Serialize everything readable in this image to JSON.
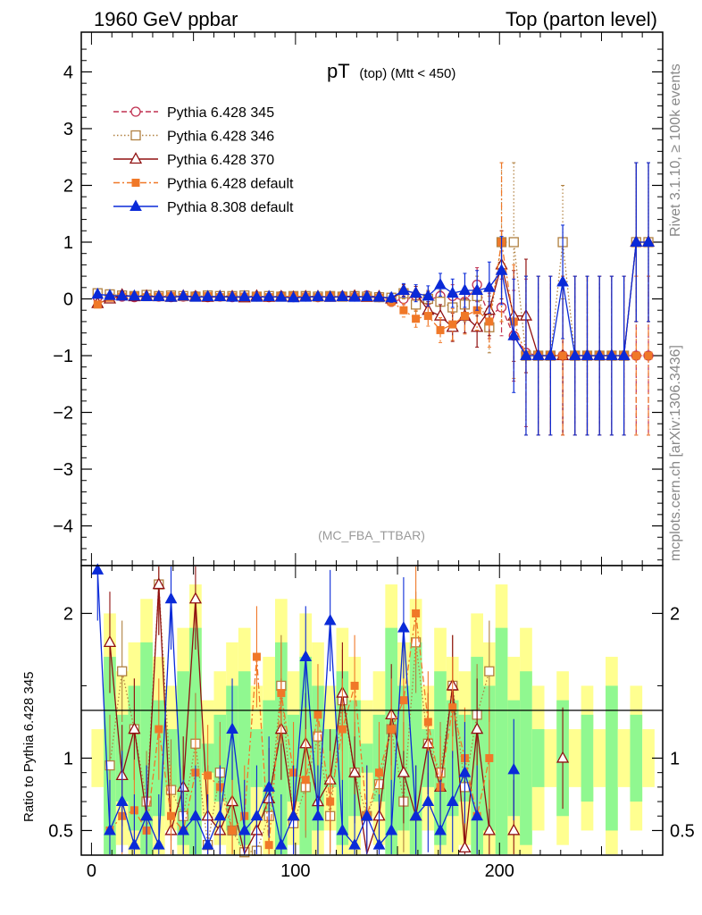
{
  "header": {
    "left": "1960 GeV ppbar",
    "right": "Top (parton level)"
  },
  "side": {
    "top": "Rivet 3.1.10, ≥ 100k events",
    "bottom": "mcplots.cern.ch [arXiv:1306.3436]"
  },
  "plot_title": {
    "main": "pT",
    "sub": "(top) (Mtt < 450)"
  },
  "watermark": "(MC_FBA_TTBAR)",
  "ratio_ylabel": "Ratio to Pythia 6.428 345",
  "chart_data": [
    {
      "type": "line",
      "title": "pT (top) (Mtt < 450)",
      "xlim": [
        -5,
        280
      ],
      "ylim": [
        -4.7,
        4.7
      ],
      "xticks": [
        0,
        100,
        200
      ],
      "yticks": [
        -4,
        -3,
        -2,
        -1,
        0,
        1,
        2,
        3,
        4
      ],
      "legend_position": "top-left",
      "series": [
        {
          "name": "Pythia 6.428 345",
          "color": "#c03050",
          "marker": "open-circle",
          "dash": "dashed",
          "x": [
            3,
            9,
            15,
            21,
            27,
            33,
            39,
            45,
            51,
            57,
            63,
            69,
            75,
            81,
            87,
            93,
            99,
            105,
            111,
            117,
            123,
            129,
            135,
            141,
            147,
            153,
            159,
            165,
            171,
            177,
            183,
            189,
            195,
            201,
            207,
            213,
            219,
            225,
            231,
            237,
            243,
            249,
            255,
            261,
            267,
            273
          ],
          "y": [
            0.03,
            0.02,
            0.04,
            0.03,
            0.05,
            0.04,
            0.03,
            0.04,
            0.05,
            0.03,
            0.04,
            0.03,
            0.04,
            0.04,
            0.03,
            0.05,
            0.03,
            0.04,
            0.03,
            0.04,
            0.05,
            0.04,
            0.06,
            0.03,
            -0.05,
            0.0,
            0.05,
            -0.02,
            0.05,
            0.05,
            -0.05,
            0.25,
            -0.3,
            -0.15,
            -0.65,
            -0.95,
            -1.0,
            -1.0,
            -1.0,
            -1.0,
            -1.0,
            -1.0,
            -1.0,
            -1.0,
            -1.0,
            -1.0
          ],
          "err": [
            0.05,
            0.05,
            0.05,
            0.05,
            0.05,
            0.05,
            0.05,
            0.05,
            0.05,
            0.05,
            0.05,
            0.05,
            0.05,
            0.05,
            0.05,
            0.05,
            0.05,
            0.05,
            0.05,
            0.05,
            0.05,
            0.05,
            0.06,
            0.06,
            0.08,
            0.1,
            0.1,
            0.15,
            0.15,
            0.2,
            0.25,
            0.3,
            0.4,
            0.5,
            0.8,
            1.3,
            1.4,
            1.4,
            1.4,
            1.4,
            1.4,
            1.4,
            1.4,
            1.4,
            1.4,
            1.4
          ]
        },
        {
          "name": "Pythia 6.428 346",
          "color": "#b08040",
          "marker": "open-square",
          "dash": "dotted",
          "x": [
            3,
            9,
            15,
            21,
            27,
            33,
            39,
            45,
            51,
            57,
            63,
            69,
            75,
            81,
            87,
            93,
            99,
            105,
            111,
            117,
            123,
            129,
            135,
            141,
            147,
            153,
            159,
            165,
            171,
            177,
            183,
            189,
            195,
            201,
            207,
            213,
            219,
            225,
            231,
            237,
            243,
            249,
            255,
            261,
            267,
            273
          ],
          "y": [
            0.1,
            0.08,
            0.06,
            0.05,
            0.07,
            0.05,
            0.06,
            0.05,
            0.04,
            0.06,
            0.05,
            0.05,
            0.06,
            0.04,
            0.05,
            0.04,
            0.05,
            0.05,
            0.04,
            0.05,
            0.04,
            0.05,
            0.04,
            0.03,
            0.02,
            0.1,
            -0.1,
            0.0,
            -0.05,
            -0.15,
            -0.1,
            0.05,
            -0.5,
            1.0,
            1.0,
            -1.0,
            -1.0,
            -1.0,
            1.0,
            -1.0,
            -1.0,
            -1.0,
            -1.0,
            -1.0,
            1.0,
            1.0
          ],
          "err": [
            0.05,
            0.05,
            0.05,
            0.05,
            0.05,
            0.05,
            0.05,
            0.05,
            0.05,
            0.05,
            0.05,
            0.05,
            0.05,
            0.05,
            0.05,
            0.05,
            0.05,
            0.05,
            0.05,
            0.05,
            0.05,
            0.05,
            0.06,
            0.06,
            0.08,
            0.1,
            0.12,
            0.15,
            0.2,
            0.25,
            0.3,
            0.35,
            0.45,
            1.4,
            1.4,
            1.4,
            1.4,
            1.4,
            1.0,
            1.4,
            1.4,
            1.4,
            1.4,
            1.4,
            1.4,
            1.4
          ]
        },
        {
          "name": "Pythia 6.428 370",
          "color": "#901010",
          "marker": "open-triangle",
          "dash": "solid",
          "x": [
            3,
            9,
            15,
            21,
            27,
            33,
            39,
            45,
            51,
            57,
            63,
            69,
            75,
            81,
            87,
            93,
            99,
            105,
            111,
            117,
            123,
            129,
            135,
            141,
            147,
            153,
            159,
            165,
            171,
            177,
            183,
            189,
            195,
            201,
            207,
            213,
            219,
            225,
            231,
            237,
            243,
            249,
            255,
            261,
            267,
            273
          ],
          "y": [
            -0.08,
            0.0,
            0.07,
            0.04,
            0.05,
            0.04,
            0.03,
            0.05,
            0.04,
            0.03,
            0.04,
            0.04,
            0.02,
            0.05,
            0.03,
            0.04,
            0.03,
            0.04,
            0.04,
            0.03,
            0.04,
            0.05,
            0.03,
            0.04,
            0.0,
            0.15,
            0.1,
            -0.2,
            -0.3,
            -0.5,
            -0.3,
            -0.5,
            -0.2,
            0.6,
            -0.3,
            -0.3,
            -1.0,
            -1.0,
            -1.0,
            -1.0,
            -1.0,
            -1.0,
            -1.0,
            -1.0,
            1.0,
            1.0
          ],
          "err": [
            0.05,
            0.05,
            0.05,
            0.05,
            0.05,
            0.05,
            0.05,
            0.05,
            0.05,
            0.05,
            0.05,
            0.05,
            0.05,
            0.05,
            0.05,
            0.05,
            0.05,
            0.05,
            0.05,
            0.05,
            0.05,
            0.05,
            0.06,
            0.06,
            0.08,
            0.1,
            0.12,
            0.15,
            0.2,
            0.25,
            0.3,
            0.35,
            0.45,
            0.6,
            0.8,
            1.0,
            1.4,
            1.4,
            1.4,
            1.4,
            1.4,
            1.4,
            1.4,
            1.4,
            1.4,
            1.4
          ]
        },
        {
          "name": "Pythia 6.428 default",
          "color": "#f07828",
          "marker": "filled-square",
          "dash": "dashdot",
          "x": [
            3,
            9,
            15,
            21,
            27,
            33,
            39,
            45,
            51,
            57,
            63,
            69,
            75,
            81,
            87,
            93,
            99,
            105,
            111,
            117,
            123,
            129,
            135,
            141,
            147,
            153,
            159,
            165,
            171,
            177,
            183,
            189,
            195,
            201,
            207,
            213,
            219,
            225,
            231,
            237,
            243,
            249,
            255,
            261,
            267,
            273
          ],
          "y": [
            -0.1,
            0.02,
            0.04,
            0.05,
            0.03,
            0.04,
            0.05,
            0.03,
            0.04,
            0.05,
            0.03,
            0.04,
            0.04,
            0.05,
            0.03,
            0.04,
            0.05,
            0.04,
            0.03,
            0.05,
            0.04,
            0.04,
            0.03,
            0.02,
            -0.05,
            -0.2,
            -0.35,
            -0.3,
            -0.55,
            -0.45,
            -0.3,
            -0.2,
            -0.4,
            1.0,
            -0.4,
            -1.0,
            -1.0,
            -1.0,
            -1.0,
            -1.0,
            -1.0,
            -1.0,
            -1.0,
            -1.0,
            -1.0,
            -1.0
          ],
          "err": [
            0.05,
            0.05,
            0.05,
            0.05,
            0.05,
            0.05,
            0.05,
            0.05,
            0.05,
            0.05,
            0.05,
            0.05,
            0.05,
            0.05,
            0.05,
            0.05,
            0.05,
            0.05,
            0.05,
            0.05,
            0.05,
            0.05,
            0.06,
            0.06,
            0.08,
            0.12,
            0.15,
            0.18,
            0.22,
            0.28,
            0.32,
            0.35,
            0.45,
            1.4,
            1.0,
            1.4,
            1.4,
            1.4,
            1.4,
            1.4,
            1.4,
            1.4,
            1.4,
            1.4,
            1.4,
            1.4
          ]
        },
        {
          "name": "Pythia 8.308 default",
          "color": "#0a2ad8",
          "marker": "filled-triangle",
          "dash": "solid",
          "x": [
            3,
            9,
            15,
            21,
            27,
            33,
            39,
            45,
            51,
            57,
            63,
            69,
            75,
            81,
            87,
            93,
            99,
            105,
            111,
            117,
            123,
            129,
            135,
            141,
            147,
            153,
            159,
            165,
            171,
            177,
            183,
            189,
            195,
            201,
            207,
            213,
            219,
            225,
            231,
            237,
            243,
            249,
            255,
            261,
            267,
            273
          ],
          "y": [
            0.08,
            0.06,
            0.05,
            0.05,
            0.04,
            0.04,
            0.03,
            0.05,
            0.03,
            0.04,
            0.04,
            0.03,
            0.04,
            0.03,
            0.04,
            0.03,
            0.02,
            0.03,
            0.04,
            0.03,
            0.04,
            0.03,
            0.04,
            0.03,
            0.02,
            0.15,
            0.1,
            0.05,
            0.25,
            0.1,
            0.15,
            0.15,
            0.2,
            0.5,
            -0.65,
            -1.0,
            -1.0,
            -1.0,
            0.3,
            -1.0,
            -1.0,
            -1.0,
            -1.0,
            -1.0,
            1.0,
            1.0
          ],
          "err": [
            0.05,
            0.05,
            0.05,
            0.05,
            0.05,
            0.05,
            0.05,
            0.05,
            0.05,
            0.05,
            0.05,
            0.05,
            0.05,
            0.05,
            0.05,
            0.05,
            0.05,
            0.05,
            0.05,
            0.05,
            0.05,
            0.05,
            0.06,
            0.06,
            0.08,
            0.12,
            0.15,
            0.18,
            0.2,
            0.25,
            0.3,
            0.35,
            0.45,
            0.6,
            1.0,
            1.4,
            1.4,
            1.4,
            1.0,
            1.4,
            1.4,
            1.4,
            1.4,
            1.4,
            1.4,
            1.4
          ]
        }
      ]
    },
    {
      "type": "line",
      "ylabel": "Ratio to Pythia 6.428 345",
      "xlim": [
        -5,
        280
      ],
      "ylim": [
        0.33,
        2.33
      ],
      "yticks": [
        0.5,
        1,
        2
      ],
      "band_colors": {
        "inner": "#90f890",
        "outer": "#ffff90"
      },
      "band_inner": [
        0.9,
        1.7,
        1.3,
        1.5,
        1.8,
        1.4,
        1.2,
        1.6,
        1.9,
        1.1,
        1.3,
        1.5,
        1.6,
        1.2,
        1.4,
        1.8,
        1.3,
        1.7,
        1.5,
        1.2,
        1.6,
        1.4,
        1.1,
        1.3,
        1.9,
        1.5,
        1.8,
        1.2,
        1.6,
        1.4,
        1.3,
        1.7,
        1.5,
        1.9,
        1.4,
        1.6,
        1.2,
        1.0,
        1.4,
        1.0,
        1.3,
        1.0,
        1.5,
        1.0,
        1.3,
        1.0
      ],
      "band_outer": [
        1.2,
        2.0,
        1.6,
        1.8,
        2.1,
        1.7,
        1.5,
        1.9,
        2.2,
        1.4,
        1.6,
        1.8,
        1.9,
        1.5,
        1.7,
        2.1,
        1.6,
        2.0,
        1.8,
        1.5,
        1.9,
        1.7,
        1.4,
        1.6,
        2.2,
        1.8,
        2.1,
        1.5,
        1.9,
        1.7,
        1.6,
        2.0,
        1.8,
        2.2,
        1.7,
        1.9,
        1.5,
        1.2,
        1.6,
        1.2,
        1.5,
        1.2,
        1.7,
        1.2,
        1.5,
        1.2
      ],
      "series": [
        {
          "name": "Pythia 6.428 346",
          "color": "#b08040",
          "y": [
            null,
            0.95,
            1.6,
            1.2,
            0.7,
            2.2,
            0.78,
            0.6,
            1.1,
            0.4,
            0.9,
            0.5,
            0.35,
            0.36,
            0.6,
            1.5,
            0.55,
            0.8,
            1.15,
            0.6,
            1.4,
            0.9,
            0.6,
            0.82,
            1.2,
            0.7,
            1.8,
            1.1,
            0.9,
            1.5,
            0.8,
            1.3,
            1.6,
            null,
            null,
            null,
            null,
            null,
            null,
            null,
            null,
            null,
            null,
            null,
            null,
            null
          ]
        },
        {
          "name": "Pythia 6.428 370",
          "color": "#901010",
          "y": [
            null,
            1.8,
            0.88,
            1.2,
            0.6,
            2.2,
            0.5,
            0.8,
            2.1,
            0.6,
            0.5,
            0.7,
            0.34,
            0.5,
            0.72,
            1.2,
            0.6,
            1.1,
            0.7,
            0.85,
            1.45,
            0.9,
            0.34,
            0.6,
            1.3,
            0.9,
            0.6,
            1.1,
            0.8,
            1.5,
            0.38,
            1.2,
            0.5,
            null,
            0.5,
            null,
            null,
            null,
            1.0,
            null,
            null,
            null,
            null,
            null,
            null,
            null
          ]
        },
        {
          "name": "Pythia 6.428 default",
          "color": "#f07828",
          "y": [
            null,
            0.5,
            0.6,
            0.64,
            0.5,
            1.2,
            0.6,
            0.5,
            0.9,
            0.88,
            0.8,
            0.5,
            0.6,
            1.7,
            0.4,
            1.45,
            0.9,
            0.85,
            1.3,
            0.7,
            1.2,
            1.5,
            0.6,
            0.9,
            1.2,
            1.4,
            2.0,
            1.25,
            0.8,
            1.35,
            1.0,
            0.6,
            1.0,
            null,
            null,
            null,
            null,
            null,
            null,
            null,
            null,
            null,
            null,
            null,
            null,
            null
          ]
        },
        {
          "name": "Pythia 8.308 default",
          "color": "#0a2ad8",
          "y": [
            2.3,
            0.5,
            0.7,
            0.4,
            0.6,
            0.4,
            2.1,
            0.5,
            0.6,
            0.4,
            0.6,
            1.2,
            0.5,
            0.6,
            0.8,
            0.4,
            0.6,
            1.7,
            0.6,
            1.95,
            0.5,
            0.4,
            0.6,
            0.4,
            0.5,
            1.9,
            0.6,
            0.7,
            0.5,
            0.7,
            0.9,
            0.6,
            null,
            null,
            0.92,
            null,
            null,
            null,
            null,
            null,
            null,
            null,
            null,
            null,
            null,
            null
          ]
        }
      ]
    }
  ]
}
